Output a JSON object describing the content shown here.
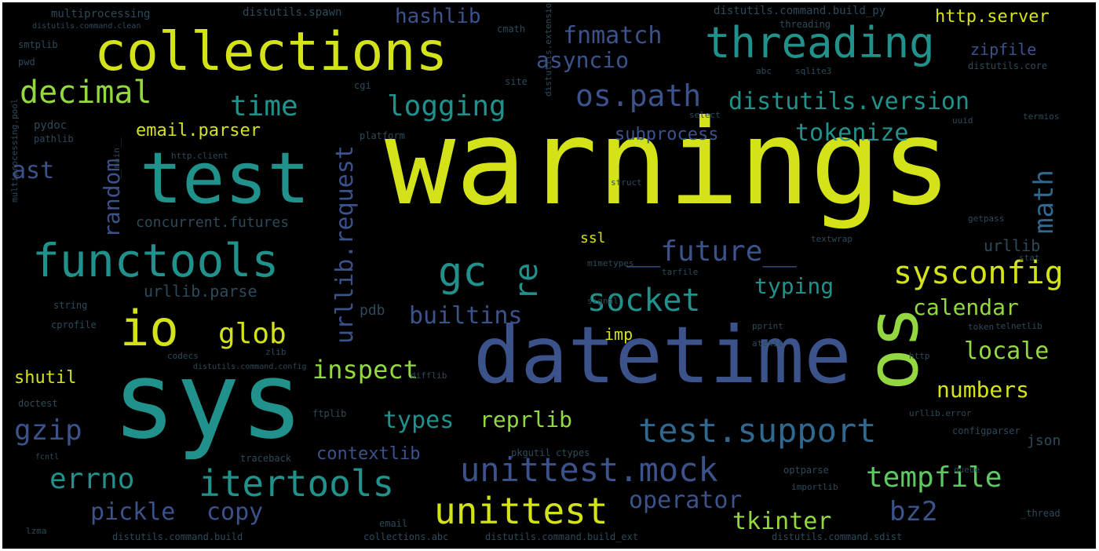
{
  "colors": {
    "background": "#000000",
    "palette": {
      "yellow": "#d4e21a",
      "lime": "#93d741",
      "green": "#5ec962",
      "teal": "#21918c",
      "cyan": "#2a9d8e",
      "blue": "#31688e",
      "slate": "#3b528b",
      "dim": "#2d4a5a"
    }
  },
  "words": [
    {
      "text": "warnings",
      "color": "yellow"
    },
    {
      "text": "sys",
      "color": "teal"
    },
    {
      "text": "datetime",
      "color": "slate"
    },
    {
      "text": "test",
      "color": "teal"
    },
    {
      "text": "collections",
      "color": "yellow"
    },
    {
      "text": "os",
      "color": "lime"
    },
    {
      "text": "threading",
      "color": "teal"
    },
    {
      "text": "functools",
      "color": "teal"
    },
    {
      "text": "io",
      "color": "yellow"
    },
    {
      "text": "test.support",
      "color": "blue"
    },
    {
      "text": "unittest.mock",
      "color": "slate"
    },
    {
      "text": "itertools",
      "color": "teal"
    },
    {
      "text": "socket",
      "color": "teal"
    },
    {
      "text": "unittest",
      "color": "yellow"
    },
    {
      "text": "decimal",
      "color": "lime"
    },
    {
      "text": "sysconfig",
      "color": "yellow"
    },
    {
      "text": "tempfile",
      "color": "green"
    },
    {
      "text": "gc",
      "color": "teal"
    },
    {
      "text": "logging",
      "color": "teal"
    },
    {
      "text": "os.path",
      "color": "slate"
    },
    {
      "text": "time",
      "color": "teal"
    },
    {
      "text": "distutils.version",
      "color": "teal"
    },
    {
      "text": "__future__",
      "color": "slate"
    },
    {
      "text": "urllib.request",
      "color": "slate"
    },
    {
      "text": "math",
      "color": "blue"
    },
    {
      "text": "errno",
      "color": "teal"
    },
    {
      "text": "glob",
      "color": "yellow"
    },
    {
      "text": "re",
      "color": "teal"
    },
    {
      "text": "inspect",
      "color": "lime"
    },
    {
      "text": "gzip",
      "color": "slate"
    },
    {
      "text": "tkinter",
      "color": "lime"
    },
    {
      "text": "operator",
      "color": "slate"
    },
    {
      "text": "builtins",
      "color": "slate"
    },
    {
      "text": "typing",
      "color": "teal"
    },
    {
      "text": "tokenize",
      "color": "teal"
    },
    {
      "text": "fnmatch",
      "color": "slate"
    },
    {
      "text": "calendar",
      "color": "lime"
    },
    {
      "text": "locale",
      "color": "lime"
    },
    {
      "text": "numbers",
      "color": "yellow"
    },
    {
      "text": "types",
      "color": "teal"
    },
    {
      "text": "reprlib",
      "color": "lime"
    },
    {
      "text": "pickle",
      "color": "slate"
    },
    {
      "text": "copy",
      "color": "slate"
    },
    {
      "text": "bz2",
      "color": "slate"
    },
    {
      "text": "asyncio",
      "color": "slate"
    },
    {
      "text": "random",
      "color": "slate"
    },
    {
      "text": "ast",
      "color": "slate"
    },
    {
      "text": "hashlib",
      "color": "slate"
    },
    {
      "text": "http.server",
      "color": "yellow"
    },
    {
      "text": "email.parser",
      "color": "yellow"
    },
    {
      "text": "subprocess",
      "color": "slate"
    },
    {
      "text": "contextlib",
      "color": "slate"
    },
    {
      "text": "shutil",
      "color": "yellow"
    },
    {
      "text": "zipfile",
      "color": "slate"
    },
    {
      "text": "urllib.parse",
      "color": "dim"
    },
    {
      "text": "concurrent.futures",
      "color": "dim"
    },
    {
      "text": "imp",
      "color": "yellow"
    },
    {
      "text": "ssl",
      "color": "yellow"
    },
    {
      "text": "urllib",
      "color": "dim"
    },
    {
      "text": "pdb",
      "color": "dim"
    },
    {
      "text": "json",
      "color": "dim"
    },
    {
      "text": "multiprocessing",
      "color": "dim"
    },
    {
      "text": "distutils.spawn",
      "color": "dim"
    },
    {
      "text": "distutils.command.build_py",
      "color": "dim"
    },
    {
      "text": "distutils.command.clean",
      "color": "dim"
    },
    {
      "text": "threading",
      "color": "dim"
    },
    {
      "text": "distutils.core",
      "color": "dim"
    },
    {
      "text": "smtplib",
      "color": "dim"
    },
    {
      "text": "pwd",
      "color": "dim"
    },
    {
      "text": "cmath",
      "color": "dim"
    },
    {
      "text": "cgi",
      "color": "dim"
    },
    {
      "text": "site",
      "color": "dim"
    },
    {
      "text": "abc",
      "color": "dim"
    },
    {
      "text": "sqlite3",
      "color": "dim"
    },
    {
      "text": "pydoc",
      "color": "dim"
    },
    {
      "text": "pathlib",
      "color": "dim"
    },
    {
      "text": "platform",
      "color": "dim"
    },
    {
      "text": "select",
      "color": "dim"
    },
    {
      "text": "uuid",
      "color": "dim"
    },
    {
      "text": "termios",
      "color": "dim"
    },
    {
      "text": "http.client",
      "color": "dim"
    },
    {
      "text": "distutils.extension",
      "color": "dim"
    },
    {
      "text": "struct",
      "color": "dim"
    },
    {
      "text": "string",
      "color": "dim"
    },
    {
      "text": "cprofile",
      "color": "dim"
    },
    {
      "text": "textwrap",
      "color": "dim"
    },
    {
      "text": "getpass",
      "color": "dim"
    },
    {
      "text": "mimetypes",
      "color": "dim"
    },
    {
      "text": "signal",
      "color": "dim"
    },
    {
      "text": "tarfile",
      "color": "dim"
    },
    {
      "text": "stat",
      "color": "dim"
    },
    {
      "text": "codecs",
      "color": "dim"
    },
    {
      "text": "distutils.command.config",
      "color": "dim"
    },
    {
      "text": "atexit",
      "color": "dim"
    },
    {
      "text": "pprint",
      "color": "dim"
    },
    {
      "text": "token",
      "color": "dim"
    },
    {
      "text": "telnetlib",
      "color": "dim"
    },
    {
      "text": "doctest",
      "color": "dim"
    },
    {
      "text": "ftplib",
      "color": "dim"
    },
    {
      "text": "pkgutil",
      "color": "dim"
    },
    {
      "text": "ctypes",
      "color": "dim"
    },
    {
      "text": "urllib.error",
      "color": "dim"
    },
    {
      "text": "configparser",
      "color": "dim"
    },
    {
      "text": "traceback",
      "color": "dim"
    },
    {
      "text": "fcntl",
      "color": "dim"
    },
    {
      "text": "optparse",
      "color": "dim"
    },
    {
      "text": "importlib",
      "color": "dim"
    },
    {
      "text": "email",
      "color": "dim"
    },
    {
      "text": "_thread",
      "color": "dim"
    },
    {
      "text": "lzma",
      "color": "dim"
    },
    {
      "text": "distutils.command.build",
      "color": "dim"
    },
    {
      "text": "collections.abc",
      "color": "dim"
    },
    {
      "text": "distutils.command.build_ext",
      "color": "dim"
    },
    {
      "text": "distutils.command.sdist",
      "color": "dim"
    },
    {
      "text": "multiprocessing.pool",
      "color": "dim"
    },
    {
      "text": "http",
      "color": "dim"
    },
    {
      "text": "zlib",
      "color": "dim"
    },
    {
      "text": "__main__",
      "color": "dim"
    },
    {
      "text": "difflib",
      "color": "dim"
    },
    {
      "text": "queue",
      "color": "dim"
    }
  ]
}
